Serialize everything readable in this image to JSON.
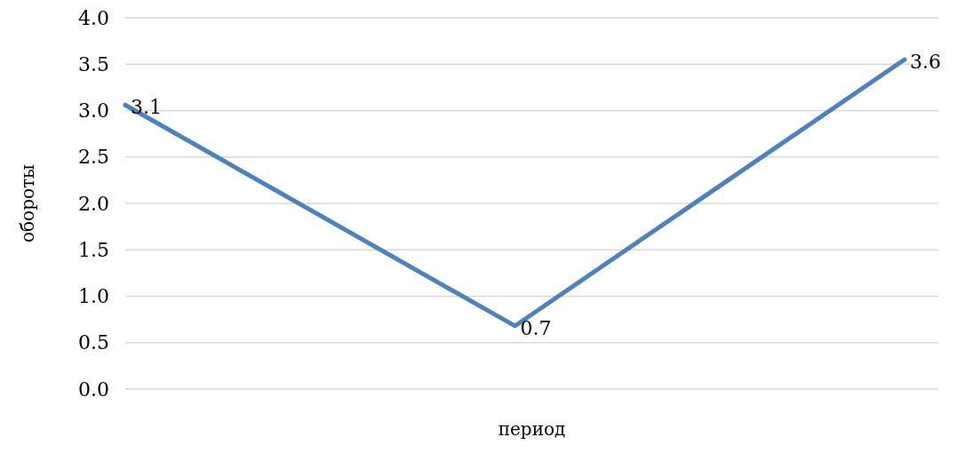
{
  "chart_data": {
    "type": "line",
    "xlabel": "период",
    "ylabel": "обороты",
    "categories": [
      null,
      null,
      null
    ],
    "series": [
      {
        "color": "#4f81bd",
        "values": [
          3.06,
          0.68,
          3.55
        ],
        "value_labels": [
          "3.1",
          "0.7",
          "3.6"
        ]
      }
    ],
    "ylim": [
      0,
      4
    ],
    "yticks": [
      {
        "value": 0,
        "label": "0.0"
      },
      {
        "value": 0.5,
        "label": "0.5"
      },
      {
        "value": 1,
        "label": "1.0"
      },
      {
        "value": 1.5,
        "label": "1.5"
      },
      {
        "value": 2,
        "label": "2.0"
      },
      {
        "value": 2.5,
        "label": "2.5"
      },
      {
        "value": 3,
        "label": "3.0"
      },
      {
        "value": 3.5,
        "label": "3.5"
      },
      {
        "value": 4,
        "label": "4.0"
      }
    ],
    "grid": "y",
    "marker": "none",
    "line_style": "solid"
  }
}
